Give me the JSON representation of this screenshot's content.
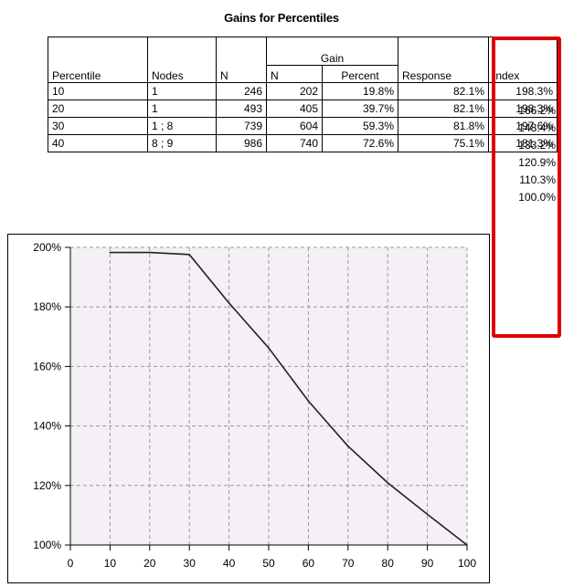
{
  "title": "Gains for Percentiles",
  "table": {
    "headers": {
      "percentile": "Percentile",
      "nodes": "Nodes",
      "n": "N",
      "gain_group": "Gain",
      "gain_n": "N",
      "gain_percent": "Percent",
      "response": "Response",
      "index": "Index"
    },
    "rows": [
      {
        "percentile": "10",
        "nodes": "1",
        "n": "246",
        "gain_n": "202",
        "gain_percent": "19.8%",
        "response": "82.1%",
        "index": "198.3%"
      },
      {
        "percentile": "20",
        "nodes": "1",
        "n": "493",
        "gain_n": "405",
        "gain_percent": "39.7%",
        "response": "82.1%",
        "index": "198.3%"
      },
      {
        "percentile": "30",
        "nodes": "1 ; 8",
        "n": "739",
        "gain_n": "604",
        "gain_percent": "59.3%",
        "response": "81.8%",
        "index": "197.6%"
      },
      {
        "percentile": "40",
        "nodes": "8 ; 9",
        "n": "986",
        "gain_n": "740",
        "gain_percent": "72.6%",
        "response": "75.1%",
        "index": "181.3%"
      }
    ],
    "index_rest": [
      "166.2%",
      "148.4%",
      "133.2%",
      "120.9%",
      "110.3%",
      "100.0%"
    ]
  },
  "chart_data": {
    "type": "line",
    "title": "",
    "xlabel": "",
    "ylabel": "",
    "x": [
      10,
      20,
      30,
      40,
      50,
      60,
      70,
      80,
      90,
      100
    ],
    "series": [
      {
        "values": [
          198.3,
          198.3,
          197.6,
          181.3,
          166.2,
          148.4,
          133.2,
          120.9,
          110.3,
          100.0
        ]
      }
    ],
    "xlim": [
      0,
      100
    ],
    "ylim": [
      100,
      200
    ],
    "x_ticks": [
      "0",
      "10",
      "20",
      "30",
      "40",
      "50",
      "60",
      "70",
      "80",
      "90",
      "100"
    ],
    "y_ticks": [
      "100%",
      "120%",
      "140%",
      "160%",
      "180%",
      "200%"
    ],
    "y_tick_values": [
      100,
      120,
      140,
      160,
      180,
      200
    ],
    "grid": true,
    "plot_background": "#f5f0f5",
    "line_color": "#222222",
    "grid_color": "#9a9a9a"
  },
  "highlight_color": "#e00000"
}
